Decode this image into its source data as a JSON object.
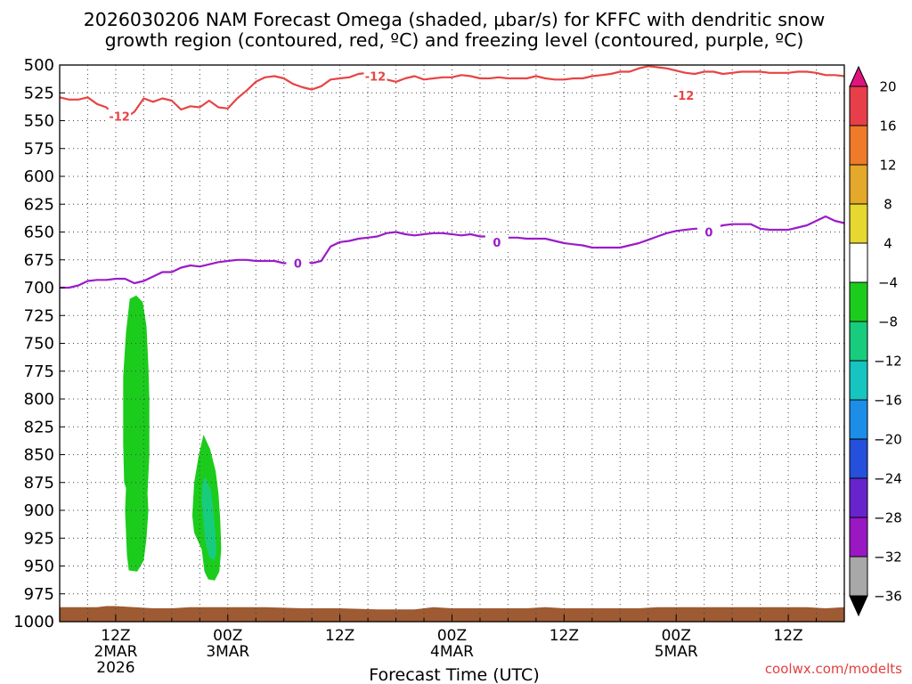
{
  "chart_data": {
    "type": "heatmap",
    "title_lines": [
      "2026030206 NAM Forecast Omega (shaded, μbar/s) for KFFC with dendritic snow",
      "growth region (contoured, red, ºC) and freezing level (contoured, purple, ºC)"
    ],
    "xlabel": "Forecast Time (UTC)",
    "credit": "coolwx.com/modelts",
    "x_range_hours": [
      6,
      90
    ],
    "y_range_mb": [
      500,
      1000
    ],
    "y_ticks": [
      500,
      525,
      550,
      575,
      600,
      625,
      650,
      675,
      700,
      725,
      750,
      775,
      800,
      825,
      850,
      875,
      900,
      925,
      950,
      975,
      1000
    ],
    "x_ticks": [
      {
        "hour": 12,
        "labels": [
          "12Z",
          "2MAR",
          "2026"
        ]
      },
      {
        "hour": 24,
        "labels": [
          "00Z",
          "3MAR"
        ]
      },
      {
        "hour": 36,
        "labels": [
          "12Z"
        ]
      },
      {
        "hour": 48,
        "labels": [
          "00Z",
          "4MAR"
        ]
      },
      {
        "hour": 60,
        "labels": [
          "12Z"
        ]
      },
      {
        "hour": 72,
        "labels": [
          "00Z",
          "5MAR"
        ]
      },
      {
        "hour": 84,
        "labels": [
          "12Z"
        ]
      }
    ],
    "colorbar": {
      "ticks": [
        "20",
        "16",
        "12",
        "8",
        "4",
        "−4",
        "−8",
        "−12",
        "−16",
        "−20",
        "−24",
        "−28",
        "−32",
        "−36"
      ],
      "colors": [
        "#e83e4a",
        "#ee7a2a",
        "#e4a82a",
        "#e6d82e",
        "#ffffff",
        "#1ccc1c",
        "#18cc7e",
        "#16c4c0",
        "#1c8ee8",
        "#2450dc",
        "#6824cc",
        "#9a18c4",
        "#a8a8a8"
      ],
      "top_arrow_color": "#e0147e",
      "bottom_arrow_color": "#000000"
    },
    "series": [
      {
        "name": "dendritic snow growth region (-12 °C)",
        "color": "#e84444",
        "label": "-12",
        "label_points": [
          [
            12.4,
            546
          ],
          [
            39.8,
            510
          ],
          [
            72.8,
            527
          ]
        ],
        "points": [
          [
            6,
            529
          ],
          [
            7,
            531
          ],
          [
            8,
            531
          ],
          [
            9,
            529
          ],
          [
            10,
            535
          ],
          [
            11,
            538
          ],
          [
            12,
            547
          ],
          [
            13,
            548
          ],
          [
            14,
            542
          ],
          [
            15,
            530
          ],
          [
            16,
            533
          ],
          [
            17,
            530
          ],
          [
            18,
            532
          ],
          [
            19,
            540
          ],
          [
            20,
            537
          ],
          [
            21,
            538
          ],
          [
            22,
            532
          ],
          [
            23,
            538
          ],
          [
            24,
            539
          ],
          [
            25,
            530
          ],
          [
            26,
            523
          ],
          [
            27,
            515
          ],
          [
            28,
            511
          ],
          [
            29,
            510
          ],
          [
            30,
            512
          ],
          [
            31,
            517
          ],
          [
            32,
            520
          ],
          [
            33,
            522
          ],
          [
            34,
            519
          ],
          [
            35,
            513
          ],
          [
            36,
            512
          ],
          [
            37,
            511
          ],
          [
            38,
            508
          ],
          [
            39,
            507
          ],
          [
            40,
            508
          ],
          [
            41,
            513
          ],
          [
            42,
            515
          ],
          [
            43,
            512
          ],
          [
            44,
            510
          ],
          [
            45,
            513
          ],
          [
            46,
            512
          ],
          [
            47,
            511
          ],
          [
            48,
            511
          ],
          [
            49,
            509
          ],
          [
            50,
            510
          ],
          [
            51,
            512
          ],
          [
            52,
            512
          ],
          [
            53,
            511
          ],
          [
            54,
            512
          ],
          [
            55,
            512
          ],
          [
            56,
            512
          ],
          [
            57,
            510
          ],
          [
            58,
            512
          ],
          [
            59,
            513
          ],
          [
            60,
            513
          ],
          [
            61,
            512
          ],
          [
            62,
            512
          ],
          [
            63,
            510
          ],
          [
            64,
            509
          ],
          [
            65,
            508
          ],
          [
            66,
            506
          ],
          [
            67,
            506
          ],
          [
            68,
            503
          ],
          [
            69,
            501
          ],
          [
            70,
            502
          ],
          [
            71,
            503
          ],
          [
            72,
            505
          ],
          [
            73,
            507
          ],
          [
            74,
            508
          ],
          [
            75,
            506
          ],
          [
            76,
            506
          ],
          [
            77,
            508
          ],
          [
            78,
            507
          ],
          [
            79,
            506
          ],
          [
            80,
            506
          ],
          [
            81,
            506
          ],
          [
            82,
            507
          ],
          [
            83,
            507
          ],
          [
            84,
            507
          ],
          [
            85,
            506
          ],
          [
            86,
            506
          ],
          [
            87,
            507
          ],
          [
            88,
            509
          ],
          [
            89,
            509
          ],
          [
            90,
            510
          ]
        ]
      },
      {
        "name": "freezing level (0 °C)",
        "color": "#9a1cc8",
        "label": "0",
        "label_points": [
          [
            31.5,
            678
          ],
          [
            52.8,
            659
          ],
          [
            75.5,
            650
          ]
        ],
        "points": [
          [
            6,
            700
          ],
          [
            7,
            700
          ],
          [
            8,
            698
          ],
          [
            9,
            694
          ],
          [
            10,
            693
          ],
          [
            11,
            693
          ],
          [
            12,
            692
          ],
          [
            13,
            692
          ],
          [
            14,
            696
          ],
          [
            15,
            694
          ],
          [
            16,
            690
          ],
          [
            17,
            686
          ],
          [
            18,
            686
          ],
          [
            19,
            682
          ],
          [
            20,
            680
          ],
          [
            21,
            681
          ],
          [
            22,
            679
          ],
          [
            23,
            677
          ],
          [
            24,
            676
          ],
          [
            25,
            675
          ],
          [
            26,
            675
          ],
          [
            27,
            676
          ],
          [
            28,
            676
          ],
          [
            29,
            676
          ],
          [
            30,
            678
          ],
          [
            31,
            678
          ],
          [
            32,
            676
          ],
          [
            33,
            678
          ],
          [
            34,
            676
          ],
          [
            35,
            663
          ],
          [
            36,
            659
          ],
          [
            37,
            658
          ],
          [
            38,
            656
          ],
          [
            39,
            655
          ],
          [
            40,
            654
          ],
          [
            41,
            651
          ],
          [
            42,
            650
          ],
          [
            43,
            652
          ],
          [
            44,
            653
          ],
          [
            45,
            652
          ],
          [
            46,
            651
          ],
          [
            47,
            651
          ],
          [
            48,
            652
          ],
          [
            49,
            653
          ],
          [
            50,
            652
          ],
          [
            51,
            654
          ],
          [
            52,
            654
          ],
          [
            53,
            654
          ],
          [
            54,
            655
          ],
          [
            55,
            655
          ],
          [
            56,
            656
          ],
          [
            57,
            656
          ],
          [
            58,
            656
          ],
          [
            59,
            658
          ],
          [
            60,
            660
          ],
          [
            61,
            661
          ],
          [
            62,
            662
          ],
          [
            63,
            664
          ],
          [
            64,
            664
          ],
          [
            65,
            664
          ],
          [
            66,
            664
          ],
          [
            67,
            662
          ],
          [
            68,
            660
          ],
          [
            69,
            657
          ],
          [
            70,
            654
          ],
          [
            71,
            651
          ],
          [
            72,
            649
          ],
          [
            73,
            648
          ],
          [
            74,
            647
          ],
          [
            75,
            647
          ],
          [
            76,
            646
          ],
          [
            77,
            644
          ],
          [
            78,
            643
          ],
          [
            79,
            643
          ],
          [
            80,
            643
          ],
          [
            81,
            647
          ],
          [
            82,
            648
          ],
          [
            83,
            648
          ],
          [
            84,
            648
          ],
          [
            85,
            646
          ],
          [
            86,
            644
          ],
          [
            87,
            640
          ],
          [
            88,
            636
          ],
          [
            89,
            640
          ],
          [
            90,
            642
          ]
        ]
      }
    ],
    "omega_regions": [
      {
        "value_range": "-8 to -4",
        "color": "#1ccc1c",
        "points": [
          [
            14.2,
            707
          ],
          [
            14.9,
            713
          ],
          [
            15.3,
            735
          ],
          [
            15.5,
            770
          ],
          [
            15.6,
            800
          ],
          [
            15.6,
            850
          ],
          [
            15.4,
            885
          ],
          [
            15.5,
            900
          ],
          [
            15.3,
            925
          ],
          [
            15.0,
            945
          ],
          [
            14.3,
            955
          ],
          [
            13.4,
            954
          ],
          [
            13.2,
            940
          ],
          [
            13.0,
            900
          ],
          [
            13.1,
            880
          ],
          [
            12.9,
            875
          ],
          [
            12.8,
            840
          ],
          [
            12.8,
            780
          ],
          [
            13.1,
            740
          ],
          [
            13.5,
            710
          ]
        ]
      },
      {
        "value_range": "-8 to -4",
        "color": "#1ccc1c",
        "points": [
          [
            21.4,
            832
          ],
          [
            22.1,
            845
          ],
          [
            22.7,
            865
          ],
          [
            23.0,
            885
          ],
          [
            23.2,
            910
          ],
          [
            23.3,
            935
          ],
          [
            23.1,
            955
          ],
          [
            22.6,
            963
          ],
          [
            21.9,
            962
          ],
          [
            21.5,
            955
          ],
          [
            21.2,
            935
          ],
          [
            20.4,
            920
          ],
          [
            20.2,
            905
          ],
          [
            20.4,
            875
          ],
          [
            20.9,
            850
          ]
        ]
      },
      {
        "value_range": "-12 to -8",
        "color": "#18cc7e",
        "points": [
          [
            21.6,
            870
          ],
          [
            22.2,
            882
          ],
          [
            22.5,
            905
          ],
          [
            22.8,
            935
          ],
          [
            22.6,
            945
          ],
          [
            22.0,
            942
          ],
          [
            21.6,
            928
          ],
          [
            21.4,
            910
          ],
          [
            21.2,
            890
          ],
          [
            21.3,
            875
          ]
        ]
      }
    ],
    "terrain": {
      "color": "#9e5a32",
      "top_mb": [
        [
          6,
          987
        ],
        [
          8,
          987
        ],
        [
          10,
          987
        ],
        [
          11,
          986
        ],
        [
          12,
          986
        ],
        [
          14,
          987
        ],
        [
          16,
          988
        ],
        [
          18,
          988
        ],
        [
          20,
          987
        ],
        [
          24,
          987
        ],
        [
          28,
          987
        ],
        [
          32,
          988
        ],
        [
          36,
          988
        ],
        [
          40,
          989
        ],
        [
          44,
          989
        ],
        [
          46,
          987
        ],
        [
          48,
          988
        ],
        [
          52,
          988
        ],
        [
          56,
          988
        ],
        [
          58,
          987
        ],
        [
          60,
          988
        ],
        [
          64,
          988
        ],
        [
          68,
          988
        ],
        [
          70,
          987
        ],
        [
          72,
          987
        ],
        [
          76,
          987
        ],
        [
          80,
          987
        ],
        [
          84,
          987
        ],
        [
          86,
          987
        ],
        [
          88,
          988
        ],
        [
          90,
          987
        ]
      ]
    }
  }
}
